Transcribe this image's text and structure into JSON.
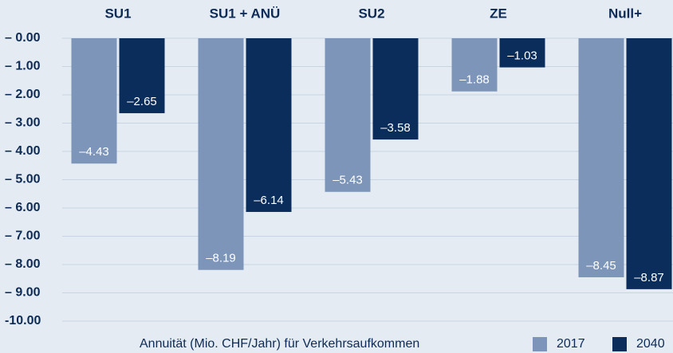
{
  "chart_data": {
    "type": "bar",
    "categories": [
      "SU1",
      "SU1 + ANÜ",
      "SU2",
      "ZE",
      "Null+"
    ],
    "series": [
      {
        "name": "2017",
        "color": "#7c95b8",
        "values": [
          -4.43,
          -8.19,
          -5.43,
          -1.88,
          -8.45
        ],
        "value_labels": [
          "–4.43",
          "–8.19",
          "–5.43",
          "–1.88",
          "–8.45"
        ]
      },
      {
        "name": "2040",
        "color": "#0b2d5c",
        "values": [
          -2.65,
          -6.14,
          -3.58,
          -1.03,
          -8.87
        ],
        "value_labels": [
          "–2.65",
          "–6.14",
          "–3.58",
          "–1.03",
          "–8.87"
        ]
      }
    ],
    "x_label": "Annuität (Mio. CHF/Jahr) für Verkehrsaufkommen",
    "ylim": [
      0,
      -10
    ],
    "yticks": [
      {
        "value": 0,
        "label": "– 0.00"
      },
      {
        "value": -1,
        "label": "– 1.00"
      },
      {
        "value": -2,
        "label": "– 2.00"
      },
      {
        "value": -3,
        "label": "– 3.00"
      },
      {
        "value": -4,
        "label": "– 4.00"
      },
      {
        "value": -5,
        "label": "– 5.00"
      },
      {
        "value": -6,
        "label": "– 6.00"
      },
      {
        "value": -7,
        "label": "– 7.00"
      },
      {
        "value": -8,
        "label": "– 8.00"
      },
      {
        "value": -9,
        "label": "– 9.00"
      },
      {
        "value": -10,
        "label": "-10.00"
      }
    ],
    "grid": true
  }
}
